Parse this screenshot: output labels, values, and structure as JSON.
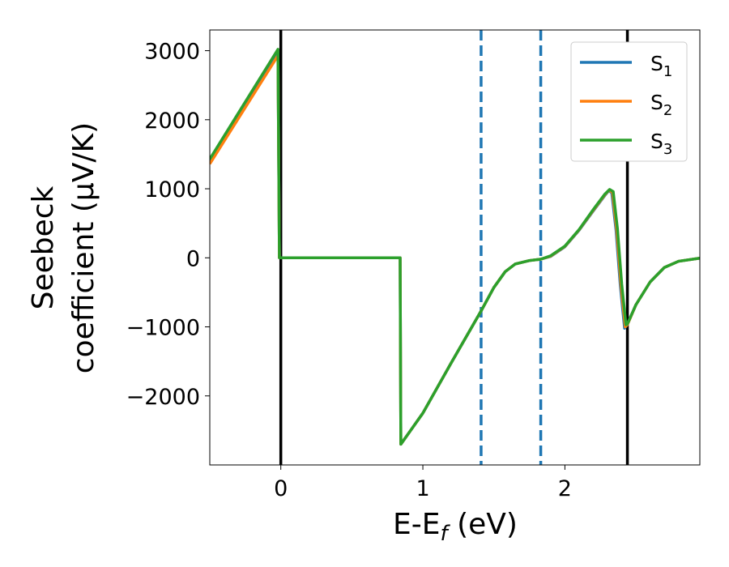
{
  "chart_data": {
    "type": "line",
    "xlabel": "E-E_f (eV)",
    "xlabel_parts": {
      "main": "E-E",
      "sub": "f",
      "rest": " (eV)"
    },
    "ylabel_line1": "Seebeck",
    "ylabel_line2": "coefficient  (μV/K)",
    "xlim": [
      -0.5,
      2.95
    ],
    "ylim": [
      -3000,
      3300
    ],
    "x_ticks": [
      0,
      1,
      2
    ],
    "x_tick_labels": [
      "0",
      "1",
      "2"
    ],
    "y_ticks": [
      -2000,
      -1000,
      0,
      1000,
      2000,
      3000
    ],
    "y_tick_labels": [
      "−2000",
      "−1000",
      "0",
      "1000",
      "2000",
      "3000"
    ],
    "grid": false,
    "legend_position": "top-right",
    "vertical_lines": [
      {
        "x": 0.0,
        "style": "solid",
        "color": "#000000"
      },
      {
        "x": 2.44,
        "style": "solid",
        "color": "#000000"
      },
      {
        "x": 1.41,
        "style": "dashed",
        "color": "#1f77b4"
      },
      {
        "x": 1.83,
        "style": "dashed",
        "color": "#1f77b4"
      }
    ],
    "series": [
      {
        "name": "S1",
        "label_main": "S",
        "label_sub": "1",
        "color": "#1f77b4",
        "points": [
          [
            -0.5,
            1390
          ],
          [
            -0.02,
            2960
          ],
          [
            -0.01,
            0
          ],
          [
            0.84,
            0
          ],
          [
            0.845,
            -2700
          ],
          [
            1.0,
            -2250
          ],
          [
            1.2,
            -1520
          ],
          [
            1.41,
            -770
          ],
          [
            1.5,
            -430
          ],
          [
            1.58,
            -200
          ],
          [
            1.65,
            -90
          ],
          [
            1.75,
            -40
          ],
          [
            1.83,
            -20
          ],
          [
            1.9,
            20
          ],
          [
            2.0,
            160
          ],
          [
            2.1,
            400
          ],
          [
            2.2,
            680
          ],
          [
            2.28,
            900
          ],
          [
            2.31,
            975
          ],
          [
            2.33,
            940
          ],
          [
            2.36,
            400
          ],
          [
            2.39,
            -400
          ],
          [
            2.42,
            -1020
          ],
          [
            2.44,
            -960
          ],
          [
            2.5,
            -680
          ],
          [
            2.6,
            -350
          ],
          [
            2.7,
            -140
          ],
          [
            2.8,
            -50
          ],
          [
            2.95,
            -5
          ]
        ]
      },
      {
        "name": "S2",
        "label_main": "S",
        "label_sub": "2",
        "color": "#ff7f0e",
        "points": [
          [
            -0.5,
            1360
          ],
          [
            -0.02,
            2930
          ],
          [
            -0.01,
            0
          ],
          [
            0.84,
            0
          ],
          [
            0.845,
            -2700
          ],
          [
            1.0,
            -2250
          ],
          [
            1.2,
            -1520
          ],
          [
            1.41,
            -770
          ],
          [
            1.5,
            -430
          ],
          [
            1.58,
            -200
          ],
          [
            1.65,
            -90
          ],
          [
            1.75,
            -40
          ],
          [
            1.83,
            -20
          ],
          [
            1.9,
            25
          ],
          [
            2.0,
            165
          ],
          [
            2.1,
            405
          ],
          [
            2.2,
            690
          ],
          [
            2.28,
            910
          ],
          [
            2.31,
            980
          ],
          [
            2.335,
            950
          ],
          [
            2.365,
            400
          ],
          [
            2.395,
            -400
          ],
          [
            2.425,
            -1000
          ],
          [
            2.44,
            -970
          ],
          [
            2.5,
            -680
          ],
          [
            2.6,
            -350
          ],
          [
            2.7,
            -140
          ],
          [
            2.8,
            -50
          ],
          [
            2.95,
            -5
          ]
        ]
      },
      {
        "name": "S3",
        "label_main": "S",
        "label_sub": "3",
        "color": "#2ca02c",
        "points": [
          [
            -0.5,
            1430
          ],
          [
            -0.02,
            3020
          ],
          [
            -0.01,
            0
          ],
          [
            0.84,
            0
          ],
          [
            0.845,
            -2700
          ],
          [
            1.0,
            -2250
          ],
          [
            1.2,
            -1520
          ],
          [
            1.41,
            -770
          ],
          [
            1.5,
            -430
          ],
          [
            1.58,
            -200
          ],
          [
            1.65,
            -90
          ],
          [
            1.75,
            -40
          ],
          [
            1.83,
            -20
          ],
          [
            1.9,
            30
          ],
          [
            2.0,
            170
          ],
          [
            2.1,
            410
          ],
          [
            2.2,
            700
          ],
          [
            2.28,
            920
          ],
          [
            2.315,
            990
          ],
          [
            2.34,
            960
          ],
          [
            2.37,
            420
          ],
          [
            2.4,
            -380
          ],
          [
            2.43,
            -970
          ],
          [
            2.44,
            -960
          ],
          [
            2.5,
            -680
          ],
          [
            2.6,
            -350
          ],
          [
            2.7,
            -140
          ],
          [
            2.8,
            -50
          ],
          [
            2.95,
            -5
          ]
        ]
      }
    ]
  }
}
